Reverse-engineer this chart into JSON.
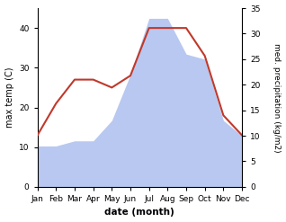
{
  "months": [
    "Jan",
    "Feb",
    "Mar",
    "Apr",
    "May",
    "Jun",
    "Jul",
    "Aug",
    "Sep",
    "Oct",
    "Nov",
    "Dec"
  ],
  "temperature": [
    13,
    21,
    27,
    27,
    25,
    28,
    40,
    40,
    40,
    33,
    18,
    13
  ],
  "precipitation": [
    8,
    8,
    9,
    9,
    13,
    22,
    33,
    33,
    26,
    25,
    13,
    10
  ],
  "temp_color": "#c0392b",
  "precip_color": "#b8c8f0",
  "temp_ylim": [
    0,
    45
  ],
  "precip_ylim": [
    0,
    35
  ],
  "temp_yticks": [
    0,
    10,
    20,
    30,
    40
  ],
  "precip_yticks": [
    0,
    5,
    10,
    15,
    20,
    25,
    30,
    35
  ],
  "xlabel": "date (month)",
  "ylabel_left": "max temp (C)",
  "ylabel_right": "med. precipitation (kg/m2)",
  "bg_color": "#ffffff",
  "fig_width": 3.18,
  "fig_height": 2.47,
  "dpi": 100
}
